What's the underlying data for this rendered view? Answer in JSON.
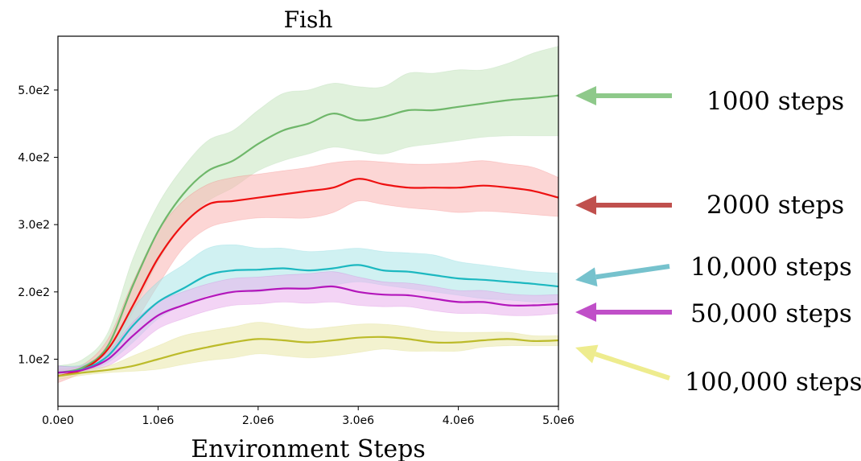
{
  "chart_data": {
    "type": "line",
    "title": "Fish",
    "xlabel": "Environment Steps",
    "ylabel": "",
    "xlim": [
      0,
      5000000
    ],
    "ylim": [
      30,
      580
    ],
    "grid": false,
    "legend": "right-annotated",
    "x_ticks": [
      {
        "value": 0,
        "label": "0.0e0"
      },
      {
        "value": 1000000,
        "label": "1.0e6"
      },
      {
        "value": 2000000,
        "label": "2.0e6"
      },
      {
        "value": 3000000,
        "label": "3.0e6"
      },
      {
        "value": 4000000,
        "label": "4.0e6"
      },
      {
        "value": 5000000,
        "label": "5.0e6"
      }
    ],
    "y_ticks": [
      {
        "value": 100,
        "label": "1.0e2"
      },
      {
        "value": 200,
        "label": "2.0e2"
      },
      {
        "value": 300,
        "label": "3.0e2"
      },
      {
        "value": 400,
        "label": "4.0e2"
      },
      {
        "value": 500,
        "label": "5.0e2"
      }
    ],
    "x": [
      0,
      250000,
      500000,
      750000,
      1000000,
      1250000,
      1500000,
      1750000,
      2000000,
      2250000,
      2500000,
      2750000,
      3000000,
      3250000,
      3500000,
      3750000,
      4000000,
      4250000,
      4500000,
      4750000,
      5000000
    ],
    "series": [
      {
        "name": "1000 steps",
        "color": "#6fb76a",
        "band_color": "#c6e5c0",
        "arrow_color": "#8ec98a",
        "values": [
          80,
          88,
          120,
          210,
          290,
          345,
          380,
          395,
          420,
          440,
          450,
          465,
          455,
          460,
          470,
          470,
          475,
          480,
          485,
          488,
          492
        ],
        "lower": [
          75,
          80,
          105,
          170,
          245,
          300,
          335,
          355,
          380,
          395,
          405,
          415,
          410,
          405,
          415,
          420,
          425,
          430,
          432,
          432,
          432
        ],
        "upper": [
          90,
          100,
          140,
          250,
          330,
          385,
          425,
          440,
          470,
          495,
          500,
          510,
          505,
          505,
          525,
          525,
          530,
          530,
          540,
          555,
          565
        ]
      },
      {
        "name": "2000 steps",
        "color": "#ee1111",
        "band_color": "#f9b5b2",
        "arrow_color": "#c0504d",
        "values": [
          75,
          85,
          115,
          180,
          250,
          300,
          330,
          335,
          340,
          345,
          350,
          355,
          368,
          360,
          355,
          355,
          355,
          358,
          355,
          350,
          340
        ],
        "lower": [
          65,
          80,
          100,
          150,
          210,
          265,
          295,
          305,
          310,
          310,
          310,
          318,
          335,
          330,
          325,
          322,
          318,
          320,
          318,
          315,
          312
        ],
        "upper": [
          85,
          92,
          130,
          215,
          290,
          335,
          360,
          370,
          375,
          380,
          385,
          392,
          395,
          393,
          390,
          390,
          392,
          395,
          390,
          385,
          370
        ]
      },
      {
        "name": "10,000 steps",
        "color": "#1cb8c0",
        "band_color": "#a9e5e8",
        "arrow_color": "#76c2cd",
        "values": [
          80,
          85,
          105,
          150,
          185,
          205,
          225,
          232,
          233,
          235,
          232,
          235,
          240,
          232,
          230,
          225,
          220,
          218,
          215,
          212,
          208
        ],
        "lower": [
          75,
          80,
          95,
          125,
          160,
          180,
          195,
          200,
          200,
          205,
          205,
          210,
          215,
          210,
          205,
          200,
          195,
          190,
          188,
          185,
          185
        ],
        "upper": [
          90,
          92,
          115,
          175,
          215,
          240,
          265,
          270,
          265,
          265,
          260,
          262,
          265,
          260,
          258,
          255,
          245,
          240,
          235,
          230,
          228
        ]
      },
      {
        "name": "50,000 steps",
        "color": "#b316bb",
        "band_color": "#e9b0ec",
        "arrow_color": "#c04fc8",
        "values": [
          80,
          84,
          100,
          135,
          165,
          180,
          192,
          200,
          202,
          205,
          205,
          208,
          200,
          196,
          195,
          190,
          185,
          185,
          180,
          180,
          182
        ],
        "lower": [
          75,
          80,
          90,
          115,
          145,
          160,
          172,
          180,
          182,
          185,
          183,
          185,
          180,
          178,
          178,
          172,
          168,
          168,
          165,
          165,
          168
        ],
        "upper": [
          90,
          90,
          110,
          155,
          185,
          200,
          212,
          220,
          222,
          225,
          227,
          230,
          222,
          215,
          213,
          208,
          202,
          202,
          197,
          195,
          196
        ]
      },
      {
        "name": "100,000 steps",
        "color": "#bcbb2a",
        "band_color": "#e9e8a8",
        "arrow_color": "#eeec8e",
        "values": [
          75,
          80,
          84,
          90,
          100,
          110,
          118,
          125,
          130,
          128,
          125,
          128,
          132,
          133,
          130,
          125,
          125,
          128,
          130,
          127,
          128
        ],
        "lower": [
          70,
          76,
          80,
          82,
          85,
          92,
          98,
          102,
          108,
          105,
          102,
          105,
          110,
          115,
          112,
          112,
          112,
          118,
          120,
          120,
          120
        ],
        "upper": [
          80,
          85,
          90,
          105,
          120,
          135,
          142,
          148,
          155,
          150,
          145,
          148,
          152,
          152,
          148,
          142,
          140,
          140,
          140,
          135,
          135
        ]
      }
    ]
  }
}
